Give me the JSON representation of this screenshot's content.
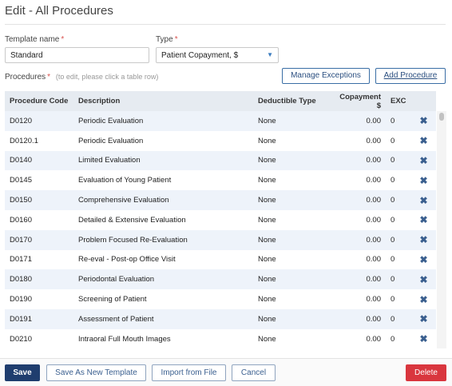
{
  "page": {
    "title": "Edit - All Procedures"
  },
  "form": {
    "template_name_label": "Template name",
    "template_name_value": "Standard",
    "type_label": "Type",
    "type_value": "Patient Copayment, $",
    "required_mark": "*"
  },
  "procedures": {
    "label": "Procedures",
    "hint": "(to edit, please click a table row)",
    "manage_exceptions": "Manage Exceptions",
    "add_procedure": "Add Procedure"
  },
  "table": {
    "headers": {
      "code": "Procedure Code",
      "description": "Description",
      "deductible": "Deductible Type",
      "copayment": "Copayment $",
      "exc": "EXC"
    },
    "rows": [
      {
        "code": "D0120",
        "description": "Periodic Evaluation",
        "deductible": "None",
        "copayment": "0.00",
        "exc": "0"
      },
      {
        "code": "D0120.1",
        "description": "Periodic Evaluation",
        "deductible": "None",
        "copayment": "0.00",
        "exc": "0"
      },
      {
        "code": "D0140",
        "description": "Limited Evaluation",
        "deductible": "None",
        "copayment": "0.00",
        "exc": "0"
      },
      {
        "code": "D0145",
        "description": "Evaluation of Young Patient",
        "deductible": "None",
        "copayment": "0.00",
        "exc": "0"
      },
      {
        "code": "D0150",
        "description": "Comprehensive Evaluation",
        "deductible": "None",
        "copayment": "0.00",
        "exc": "0"
      },
      {
        "code": "D0160",
        "description": "Detailed & Extensive Evaluation",
        "deductible": "None",
        "copayment": "0.00",
        "exc": "0"
      },
      {
        "code": "D0170",
        "description": "Problem Focused Re-Evaluation",
        "deductible": "None",
        "copayment": "0.00",
        "exc": "0"
      },
      {
        "code": "D0171",
        "description": "Re-eval - Post-op Office Visit",
        "deductible": "None",
        "copayment": "0.00",
        "exc": "0"
      },
      {
        "code": "D0180",
        "description": "Periodontal Evaluation",
        "deductible": "None",
        "copayment": "0.00",
        "exc": "0"
      },
      {
        "code": "D0190",
        "description": "Screening of Patient",
        "deductible": "None",
        "copayment": "0.00",
        "exc": "0"
      },
      {
        "code": "D0191",
        "description": "Assessment of Patient",
        "deductible": "None",
        "copayment": "0.00",
        "exc": "0"
      },
      {
        "code": "D0210",
        "description": "Intraoral Full Mouth Images",
        "deductible": "None",
        "copayment": "0.00",
        "exc": "0"
      }
    ],
    "delete_icon": "close-icon"
  },
  "footer": {
    "save": "Save",
    "save_as_new": "Save As New Template",
    "import": "Import from File",
    "cancel": "Cancel",
    "delete": "Delete"
  },
  "colors": {
    "primary": "#1f3d6e",
    "danger": "#d9363e",
    "row_alt": "#eef3fa",
    "header": "#e6ebf1"
  }
}
